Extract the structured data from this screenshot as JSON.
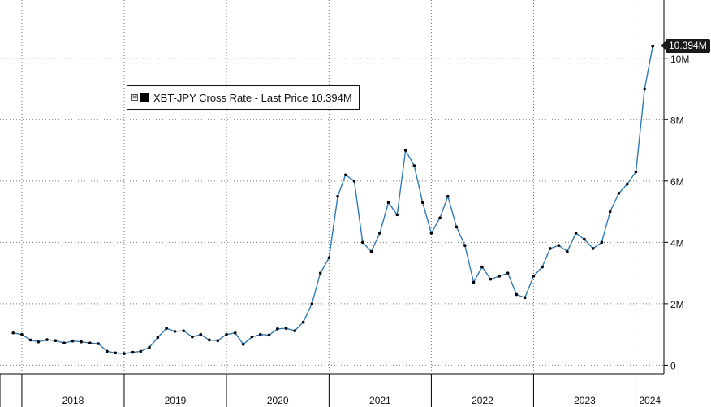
{
  "legend": {
    "expand_glyph": "⊞",
    "label": "XBT-JPY Cross Rate - Last Price 10.394M"
  },
  "last_price_label": "10.394M",
  "colors": {
    "candle": "#000000",
    "line": "#2f7ab8",
    "grid": "#777777"
  },
  "chart_data": {
    "type": "line",
    "title": "",
    "series": [
      {
        "name": "XBT-JPY Cross Rate - Last Price",
        "unit": "JPY",
        "points": [
          [
            "2017-12-01",
            1.05
          ],
          [
            "2018-01-01",
            1.0
          ],
          [
            "2018-02-01",
            0.82
          ],
          [
            "2018-03-01",
            0.76
          ],
          [
            "2018-04-01",
            0.83
          ],
          [
            "2018-05-01",
            0.8
          ],
          [
            "2018-06-01",
            0.72
          ],
          [
            "2018-07-01",
            0.79
          ],
          [
            "2018-08-01",
            0.76
          ],
          [
            "2018-09-01",
            0.72
          ],
          [
            "2018-10-01",
            0.7
          ],
          [
            "2018-11-01",
            0.45
          ],
          [
            "2018-12-01",
            0.4
          ],
          [
            "2019-01-01",
            0.38
          ],
          [
            "2019-02-01",
            0.42
          ],
          [
            "2019-03-01",
            0.45
          ],
          [
            "2019-04-01",
            0.58
          ],
          [
            "2019-05-01",
            0.9
          ],
          [
            "2019-06-01",
            1.2
          ],
          [
            "2019-07-01",
            1.1
          ],
          [
            "2019-08-01",
            1.12
          ],
          [
            "2019-09-01",
            0.92
          ],
          [
            "2019-10-01",
            1.0
          ],
          [
            "2019-11-01",
            0.82
          ],
          [
            "2019-12-01",
            0.8
          ],
          [
            "2020-01-01",
            1.0
          ],
          [
            "2020-02-01",
            1.05
          ],
          [
            "2020-03-01",
            0.68
          ],
          [
            "2020-04-01",
            0.92
          ],
          [
            "2020-05-01",
            1.0
          ],
          [
            "2020-06-01",
            0.98
          ],
          [
            "2020-07-01",
            1.18
          ],
          [
            "2020-08-01",
            1.2
          ],
          [
            "2020-09-01",
            1.12
          ],
          [
            "2020-10-01",
            1.4
          ],
          [
            "2020-11-01",
            2.0
          ],
          [
            "2020-12-01",
            3.0
          ],
          [
            "2021-01-01",
            3.5
          ],
          [
            "2021-02-01",
            5.5
          ],
          [
            "2021-03-01",
            6.2
          ],
          [
            "2021-04-01",
            6.0
          ],
          [
            "2021-05-01",
            4.0
          ],
          [
            "2021-06-01",
            3.7
          ],
          [
            "2021-07-01",
            4.3
          ],
          [
            "2021-08-01",
            5.3
          ],
          [
            "2021-09-01",
            4.9
          ],
          [
            "2021-10-01",
            7.0
          ],
          [
            "2021-11-01",
            6.5
          ],
          [
            "2021-12-01",
            5.3
          ],
          [
            "2022-01-01",
            4.3
          ],
          [
            "2022-02-01",
            4.8
          ],
          [
            "2022-03-01",
            5.5
          ],
          [
            "2022-04-01",
            4.5
          ],
          [
            "2022-05-01",
            3.9
          ],
          [
            "2022-06-01",
            2.7
          ],
          [
            "2022-07-01",
            3.2
          ],
          [
            "2022-08-01",
            2.8
          ],
          [
            "2022-09-01",
            2.9
          ],
          [
            "2022-10-01",
            3.0
          ],
          [
            "2022-11-01",
            2.3
          ],
          [
            "2022-12-01",
            2.2
          ],
          [
            "2023-01-01",
            2.9
          ],
          [
            "2023-02-01",
            3.2
          ],
          [
            "2023-03-01",
            3.8
          ],
          [
            "2023-04-01",
            3.9
          ],
          [
            "2023-05-01",
            3.7
          ],
          [
            "2023-06-01",
            4.3
          ],
          [
            "2023-07-01",
            4.1
          ],
          [
            "2023-08-01",
            3.8
          ],
          [
            "2023-09-01",
            4.0
          ],
          [
            "2023-10-01",
            5.0
          ],
          [
            "2023-11-01",
            5.6
          ],
          [
            "2023-12-01",
            5.9
          ],
          [
            "2024-01-01",
            6.3
          ],
          [
            "2024-02-01",
            9.0
          ],
          [
            "2024-03-01",
            10.394
          ]
        ]
      }
    ],
    "y_unit_note": "values in millions of JPY",
    "yticks": [
      0,
      2,
      4,
      6,
      8,
      10
    ],
    "ytick_labels": [
      "0",
      "2M",
      "4M",
      "6M",
      "8M",
      "10M"
    ],
    "ylim": [
      -0.28,
      11.9
    ],
    "xtick_labels": [
      "2018",
      "2019",
      "2020",
      "2021",
      "2022",
      "2023",
      "2024"
    ],
    "xlim": [
      "2017-10-15",
      "2024-04-10"
    ],
    "grid": true,
    "legend": "top-left"
  }
}
